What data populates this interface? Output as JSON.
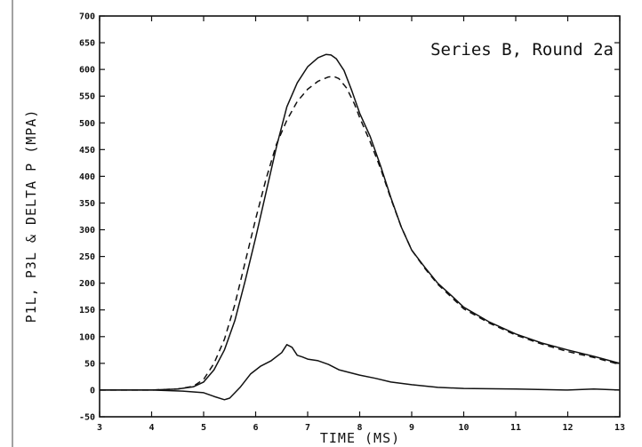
{
  "chart_data": {
    "type": "line",
    "annotation": "Series B, Round 2a",
    "xlabel": "TIME (MS)",
    "ylabel": "P1L, P3L & DELTA P  (MPA)",
    "xlim": [
      3,
      13
    ],
    "ylim": [
      -50,
      700
    ],
    "x_ticks": [
      3,
      4,
      5,
      6,
      7,
      8,
      9,
      10,
      11,
      12,
      13
    ],
    "y_ticks": [
      -50,
      0,
      50,
      100,
      150,
      200,
      250,
      300,
      350,
      400,
      450,
      500,
      550,
      600,
      650,
      700
    ],
    "grid": false,
    "series": [
      {
        "style": "solid",
        "x": [
          3.0,
          4.0,
          4.5,
          4.8,
          5.0,
          5.2,
          5.4,
          5.6,
          5.8,
          6.0,
          6.2,
          6.4,
          6.6,
          6.8,
          7.0,
          7.2,
          7.35,
          7.45,
          7.55,
          7.7,
          7.85,
          8.0,
          8.2,
          8.4,
          8.6,
          8.8,
          9.0,
          9.25,
          9.5,
          9.75,
          10.0,
          10.5,
          11.0,
          11.5,
          12.0,
          12.5,
          13.0
        ],
        "y": [
          0,
          0,
          2,
          6,
          15,
          38,
          75,
          130,
          205,
          285,
          370,
          455,
          530,
          575,
          605,
          622,
          628,
          627,
          620,
          598,
          560,
          518,
          475,
          420,
          360,
          305,
          262,
          230,
          200,
          178,
          155,
          127,
          105,
          88,
          75,
          63,
          50
        ]
      },
      {
        "style": "dashed",
        "x": [
          3.0,
          4.0,
          4.5,
          4.8,
          5.0,
          5.2,
          5.4,
          5.6,
          5.8,
          6.0,
          6.2,
          6.4,
          6.6,
          6.8,
          7.0,
          7.2,
          7.4,
          7.5,
          7.6,
          7.75,
          7.9,
          8.0,
          8.2,
          8.4,
          8.6,
          8.8,
          9.0,
          9.25,
          9.5,
          9.75,
          10.0,
          10.5,
          11.0,
          11.5,
          12.0,
          12.5,
          13.0
        ],
        "y": [
          0,
          0,
          2,
          7,
          20,
          50,
          95,
          160,
          240,
          320,
          395,
          460,
          505,
          540,
          563,
          578,
          586,
          587,
          583,
          565,
          535,
          510,
          465,
          415,
          358,
          305,
          262,
          228,
          198,
          175,
          152,
          125,
          103,
          86,
          72,
          61,
          48
        ]
      },
      {
        "style": "solid",
        "x": [
          3.0,
          4.0,
          4.6,
          5.0,
          5.2,
          5.4,
          5.5,
          5.7,
          5.9,
          6.1,
          6.3,
          6.5,
          6.6,
          6.7,
          6.8,
          6.9,
          7.0,
          7.2,
          7.4,
          7.6,
          7.8,
          8.0,
          8.3,
          8.6,
          9.0,
          9.5,
          10.0,
          11.0,
          12.0,
          12.5,
          13.0
        ],
        "y": [
          0,
          0,
          -2,
          -5,
          -12,
          -18,
          -15,
          5,
          30,
          45,
          55,
          70,
          85,
          80,
          65,
          62,
          58,
          55,
          48,
          38,
          33,
          28,
          22,
          15,
          10,
          5,
          3,
          2,
          0,
          2,
          0
        ]
      }
    ]
  }
}
